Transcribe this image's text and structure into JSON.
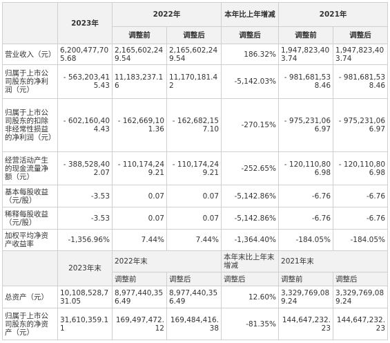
{
  "header1": {
    "y2023": "2023年",
    "y2022": "2022年",
    "change": "本年比上年增减",
    "y2021": "2021年",
    "adj_before": "调整前",
    "adj_after": "调整后",
    "adj_after_change": "调整后",
    "adj_before_2021": "调整前",
    "adj_after_2021": "调整后"
  },
  "rows1": [
    {
      "label": "营业收入（元）",
      "v2023": "6,200,477,705.68",
      "v2022b": "2,165,602,249.54",
      "v2022a": "2,165,602,249.54",
      "chg": "186.32%",
      "v2021b": "1,947,823,403.74",
      "v2021a": "1,947,823,403.74"
    },
    {
      "label": "归属于上市公司股东的净利润（元）",
      "v2023": "- 563,203,415.43",
      "v2022b": "11,183,237.16",
      "v2022a": "11,170,181.42",
      "chg": "-5,142.03%",
      "v2021b": "- 981,681,538.46",
      "v2021a": "- 981,681,538.46"
    },
    {
      "label": "归属于上市公司股东的扣除非经常性损益的净利润（元）",
      "v2023": "- 602,160,404.43",
      "v2022b": "- 162,669,101.36",
      "v2022a": "- 162,682,157.10",
      "chg": "-270.15%",
      "v2021b": "- 975,231,066.97",
      "v2021a": "- 975,231,066.97"
    },
    {
      "label": "经营活动产生的现金流量净额（元）",
      "v2023": "- 388,528,402.07",
      "v2022b": "- 110,174,249.21",
      "v2022a": "- 110,174,249.21",
      "chg": "-252.65%",
      "v2021b": "- 120,110,806.98",
      "v2021a": "- 120,110,806.98"
    },
    {
      "label": "基本每股收益（元/股）",
      "v2023": "-3.53",
      "v2022b": "0.07",
      "v2022a": "0.07",
      "chg": "-5,142.86%",
      "v2021b": "-6.76",
      "v2021a": "-6.76"
    },
    {
      "label": "稀释每股收益（元/股）",
      "v2023": "-3.53",
      "v2022b": "0.07",
      "v2022a": "0.07",
      "chg": "-5,142.86%",
      "v2021b": "-6.76",
      "v2021a": "-6.76"
    },
    {
      "label": "加权平均净资产收益率",
      "v2023": "-1,356.96%",
      "v2022b": "7.44%",
      "v2022a": "7.44%",
      "chg": "-1,364.40%",
      "v2021b": "-184.05%",
      "v2021a": "-184.05%"
    }
  ],
  "header2": {
    "y2023": "2023年末",
    "y2022": "2022年末",
    "change": "本年末比上年末增减",
    "y2021": "2021年末",
    "adj_before": "调整前",
    "adj_after": "调整后",
    "adj_after_change": "调整后",
    "adj_before_2021": "调整前",
    "adj_after_2021": "调整后"
  },
  "rows2": [
    {
      "label": "总资产（元）",
      "v2023": "10,108,528,731.05",
      "v2022b": "8,977,440,356.49",
      "v2022a": "8,977,440,356.49",
      "chg": "12.60%",
      "v2021b": "3,329,769,089.24",
      "v2021a": "3,329,769,089.24"
    },
    {
      "label": "归属于上市公司股东的净资产（元）",
      "v2023": "31,610,359.11",
      "v2022b": "169,497,472.12",
      "v2022a": "169,484,416.38",
      "chg": "-81.35%",
      "v2021b": "144,647,232.23",
      "v2021a": "144,647,232.23"
    }
  ]
}
